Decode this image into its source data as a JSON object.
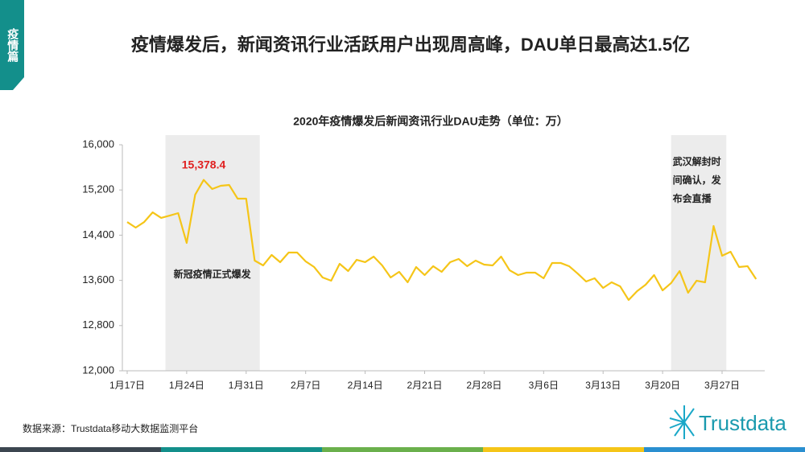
{
  "header": {
    "tab": "疫情篇",
    "title": "疫情爆发后，新闻资讯行业活跃用户出现周高峰，DAU单日最高达1.5亿"
  },
  "chart_data": {
    "type": "line",
    "title": "2020年疫情爆发后新闻资讯行业DAU走势（单位：万）",
    "categories": [
      "1月17日",
      null,
      null,
      null,
      null,
      null,
      null,
      "1月24日",
      null,
      null,
      null,
      null,
      null,
      null,
      "1月31日",
      null,
      null,
      null,
      null,
      null,
      null,
      "2月7日",
      null,
      null,
      null,
      null,
      null,
      null,
      "2月14日",
      null,
      null,
      null,
      null,
      null,
      null,
      "2月21日",
      null,
      null,
      null,
      null,
      null,
      null,
      "2月28日",
      null,
      null,
      null,
      null,
      null,
      null,
      "3月6日",
      null,
      null,
      null,
      null,
      null,
      null,
      "3月13日",
      null,
      null,
      null,
      null,
      null,
      null,
      "3月20日",
      null,
      null,
      null,
      null,
      null,
      null,
      "3月27日",
      null,
      null,
      null,
      null
    ],
    "values": [
      14633,
      14534,
      14633,
      14804,
      14705,
      14747,
      14790,
      14263,
      15117,
      15378.4,
      15217,
      15274,
      15288,
      15046,
      15046,
      13950,
      13865,
      14050,
      13922,
      14093,
      14093,
      13936,
      13836,
      13651,
      13594,
      13893,
      13765,
      13964,
      13922,
      14021,
      13865,
      13651,
      13751,
      13566,
      13836,
      13694,
      13851,
      13751,
      13922,
      13979,
      13851,
      13950,
      13879,
      13865,
      14021,
      13779,
      13694,
      13737,
      13737,
      13637,
      13908,
      13908,
      13851,
      13722,
      13580,
      13637,
      13466,
      13566,
      13495,
      13253,
      13409,
      13523,
      13694,
      13423,
      13552,
      13765,
      13381,
      13594,
      13566,
      14562,
      14036,
      14107,
      13836,
      13851,
      13623
    ],
    "value_labels": [
      null,
      null,
      null,
      null,
      null,
      null,
      null,
      null,
      null,
      "15,378.4",
      null,
      null,
      null,
      null,
      null,
      null,
      null,
      null,
      null,
      null,
      null,
      null,
      null,
      null,
      null,
      null,
      null,
      null,
      null,
      null,
      null,
      null,
      null,
      null,
      null,
      null,
      null,
      null,
      null,
      null,
      null,
      null,
      null,
      null,
      null,
      null,
      null,
      null,
      null,
      null,
      null,
      null,
      null,
      null,
      null,
      null,
      null,
      null,
      null,
      null,
      null,
      null,
      null,
      null,
      null,
      null,
      null,
      null,
      null,
      null,
      null,
      null,
      null,
      null,
      null
    ],
    "color": "#f5c518",
    "label_color": "#e02020",
    "ylim": [
      12000,
      16000
    ],
    "yticks": [
      {
        "value": 12000,
        "label": "12,000"
      },
      {
        "value": 12800,
        "label": "12,800"
      },
      {
        "value": 13600,
        "label": "13,600"
      },
      {
        "value": 14400,
        "label": "14,400"
      },
      {
        "value": 15200,
        "label": "15,200"
      },
      {
        "value": 16000,
        "label": "16,000"
      }
    ],
    "annotations": [
      [
        "新冠疫情正式爆发"
      ],
      [
        "武汉解封时",
        "间确认，发",
        "布会直播"
      ]
    ]
  },
  "footer": {
    "source": "数据来源：Trustdata移动大数据监测平台",
    "logo": "Trustdata"
  }
}
